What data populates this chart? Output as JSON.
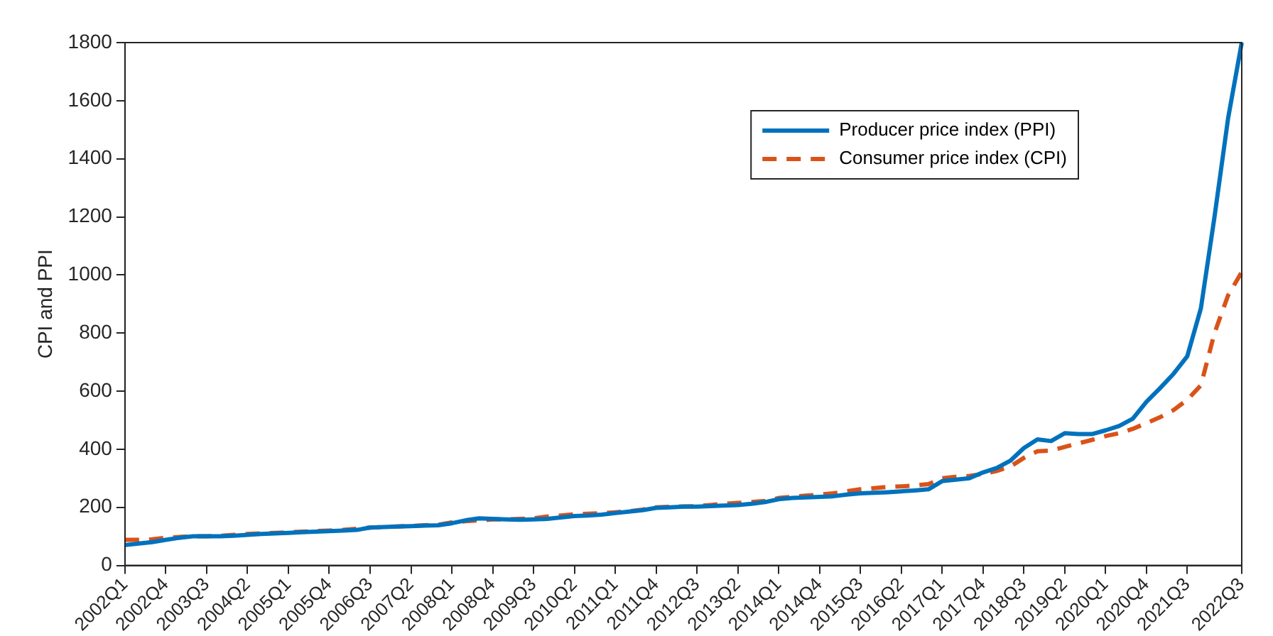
{
  "chart_data": {
    "type": "line",
    "ylabel": "CPI and PPI",
    "categories": [
      "2002Q1",
      null,
      null,
      "2002Q4",
      null,
      null,
      "2003Q3",
      null,
      null,
      "2004Q2",
      null,
      null,
      "2005Q1",
      null,
      null,
      "2005Q4",
      null,
      null,
      "2006Q3",
      null,
      null,
      "2007Q2",
      null,
      null,
      "2008Q1",
      null,
      null,
      "2008Q4",
      null,
      null,
      "2009Q3",
      null,
      null,
      "2010Q2",
      null,
      null,
      "2011Q1",
      null,
      null,
      "2011Q4",
      null,
      null,
      "2012Q3",
      null,
      null,
      "2013Q2",
      null,
      null,
      "2014Q1",
      null,
      null,
      "2014Q4",
      null,
      null,
      "2015Q3",
      null,
      null,
      "2016Q2",
      null,
      null,
      "2017Q1",
      null,
      null,
      "2017Q4",
      null,
      null,
      "2018Q3",
      null,
      null,
      "2019Q2",
      null,
      null,
      "2020Q1",
      null,
      null,
      "2020Q4",
      null,
      null,
      "2021Q3",
      null,
      null,
      null,
      "2022Q3"
    ],
    "series": [
      {
        "name": "Producer price index (PPI)",
        "color": "#0072bd",
        "line_style": "solid",
        "values": [
          70,
          75,
          80,
          88,
          95,
          100,
          100,
          100,
          102,
          105,
          108,
          110,
          112,
          114,
          116,
          118,
          120,
          122,
          130,
          132,
          134,
          135,
          137,
          138,
          145,
          155,
          162,
          160,
          158,
          157,
          158,
          160,
          165,
          170,
          172,
          175,
          180,
          185,
          190,
          198,
          200,
          202,
          202,
          204,
          206,
          208,
          212,
          218,
          228,
          232,
          234,
          236,
          238,
          244,
          248,
          250,
          252,
          255,
          258,
          262,
          290,
          295,
          300,
          320,
          335,
          360,
          404,
          434,
          428,
          455,
          452,
          452,
          465,
          480,
          505,
          563,
          610,
          660,
          720,
          885,
          1200,
          1540,
          1800
        ]
      },
      {
        "name": "Consumer price index (CPI)",
        "color": "#d95319",
        "line_style": "dashed",
        "values": [
          88,
          88,
          90,
          95,
          98,
          100,
          100,
          102,
          105,
          108,
          110,
          112,
          114,
          116,
          118,
          120,
          122,
          126,
          130,
          132,
          134,
          136,
          138,
          140,
          148,
          152,
          155,
          158,
          158,
          160,
          162,
          168,
          172,
          176,
          178,
          180,
          183,
          186,
          192,
          200,
          202,
          203,
          204,
          208,
          212,
          215,
          218,
          222,
          232,
          236,
          240,
          244,
          248,
          255,
          262,
          266,
          270,
          272,
          275,
          280,
          300,
          305,
          308,
          315,
          325,
          340,
          370,
          393,
          395,
          408,
          420,
          432,
          445,
          455,
          470,
          490,
          510,
          535,
          570,
          620,
          800,
          930,
          1010
        ]
      }
    ],
    "ylim": [
      0,
      1800
    ],
    "yticks": [
      0,
      200,
      400,
      600,
      800,
      1000,
      1200,
      1400,
      1600,
      1800
    ],
    "grid": false,
    "legend": "top right",
    "marker": "none"
  }
}
